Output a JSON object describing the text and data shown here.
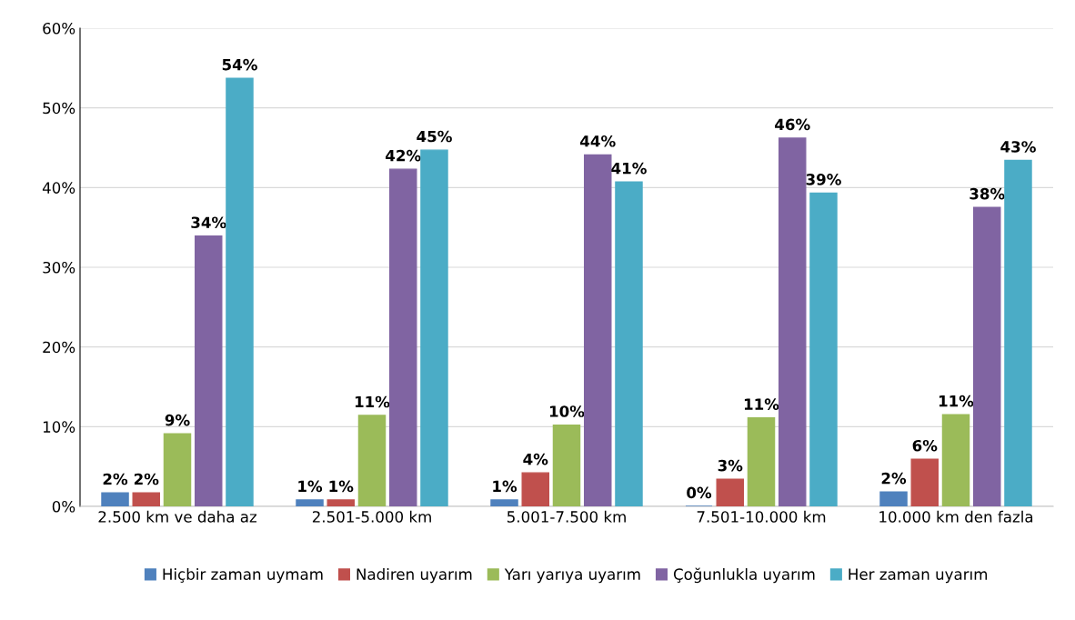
{
  "chart_data": {
    "type": "bar",
    "categories": [
      "2.500 km ve daha az",
      "2.501-5.000 km",
      "5.001-7.500 km",
      "7.501-10.000 km",
      "10.000 km den fazla"
    ],
    "series": [
      {
        "name": "Hiçbir zaman uymam",
        "color": "#4f81bd",
        "values": [
          1.7,
          0.8,
          0.8,
          0,
          1.8
        ],
        "value_labels": [
          "2%",
          "1%",
          "1%",
          "0%",
          "2%"
        ]
      },
      {
        "name": "Nadiren uyarım",
        "color": "#c0504d",
        "values": [
          1.7,
          0.8,
          4.2,
          3.4,
          5.9
        ],
        "value_labels": [
          "2%",
          "1%",
          "4%",
          "3%",
          "6%"
        ]
      },
      {
        "name": "Yarı yarıya uyarım",
        "color": "#9bbb59",
        "values": [
          9.1,
          11.4,
          10.2,
          11.1,
          11.5
        ],
        "value_labels": [
          "9%",
          "11%",
          "10%",
          "11%",
          "11%"
        ]
      },
      {
        "name": "Çoğunlukla uyarım",
        "color": "#8064a2",
        "values": [
          33.9,
          42.3,
          44.1,
          46.2,
          37.5
        ],
        "value_labels": [
          "34%",
          "42%",
          "44%",
          "46%",
          "38%"
        ]
      },
      {
        "name": "Her zaman uyarım",
        "color": "#4bacc6",
        "values": [
          53.7,
          44.7,
          40.7,
          39.3,
          43.4
        ],
        "value_labels": [
          "54%",
          "45%",
          "41%",
          "39%",
          "43%"
        ]
      }
    ],
    "ylim": [
      0,
      60
    ],
    "yticks": [
      {
        "value": 0,
        "label": "0%"
      },
      {
        "value": 10,
        "label": "10%"
      },
      {
        "value": 20,
        "label": "20%"
      },
      {
        "value": 30,
        "label": "30%"
      },
      {
        "value": 40,
        "label": "40%"
      },
      {
        "value": 50,
        "label": "50%"
      },
      {
        "value": 60,
        "label": "60%"
      }
    ],
    "grid": "y",
    "legend": "bottom"
  }
}
